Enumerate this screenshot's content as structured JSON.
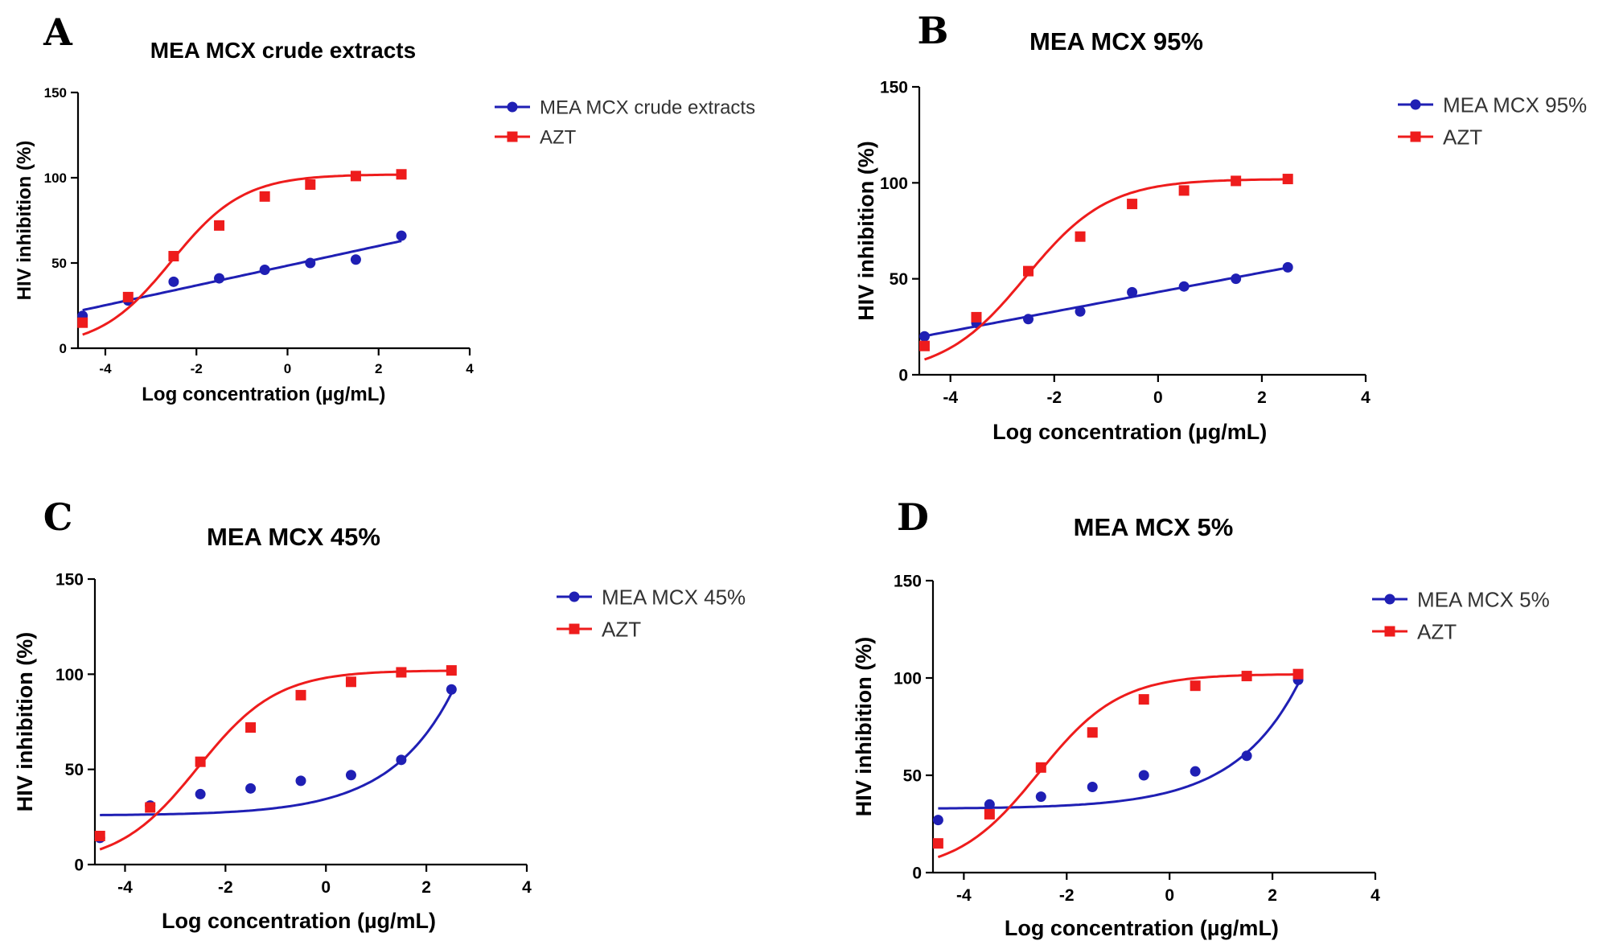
{
  "colors": {
    "blue": "#1f1fb4",
    "red": "#ee1c1c"
  },
  "chart_data": [
    {
      "panel": "A",
      "type": "scatter",
      "title": "MEA MCX crude extracts",
      "xlabel": "Log concentration (µg/mL)",
      "ylabel": "HIV inhibition (%)",
      "xlim": [
        -4.6,
        4
      ],
      "ylim": [
        0,
        150
      ],
      "xticks": [
        -4,
        -2,
        0,
        2,
        4
      ],
      "yticks": [
        0,
        50,
        100,
        150
      ],
      "series": [
        {
          "name": "MEA MCX crude extracts",
          "color": "#1f1fb4",
          "marker": "circle",
          "fit": "linear",
          "x": [
            -4.5,
            -3.5,
            -2.5,
            -1.5,
            -0.5,
            0.5,
            1.5,
            2.5
          ],
          "y": [
            19,
            28,
            39,
            41,
            46,
            50,
            52,
            66
          ]
        },
        {
          "name": "AZT",
          "color": "#ee1c1c",
          "marker": "square",
          "fit": "sigmoid",
          "x": [
            -4.5,
            -3.5,
            -2.5,
            -1.5,
            -0.5,
            0.5,
            1.5,
            2.5
          ],
          "y": [
            15,
            30,
            54,
            72,
            89,
            96,
            101,
            102
          ]
        }
      ]
    },
    {
      "panel": "B",
      "type": "scatter",
      "title": "MEA MCX 95%",
      "xlabel": "Log concentration (µg/mL)",
      "ylabel": "HIV inhibition (%)",
      "xlim": [
        -4.6,
        4
      ],
      "ylim": [
        0,
        150
      ],
      "xticks": [
        -4,
        -2,
        0,
        2,
        4
      ],
      "yticks": [
        0,
        50,
        100,
        150
      ],
      "series": [
        {
          "name": "MEA MCX 95%",
          "color": "#1f1fb4",
          "marker": "circle",
          "fit": "linear",
          "x": [
            -4.5,
            -3.5,
            -2.5,
            -1.5,
            -0.5,
            0.5,
            1.5,
            2.5
          ],
          "y": [
            20,
            27,
            29,
            33,
            43,
            46,
            50,
            56
          ]
        },
        {
          "name": "AZT",
          "color": "#ee1c1c",
          "marker": "square",
          "fit": "sigmoid",
          "x": [
            -4.5,
            -3.5,
            -2.5,
            -1.5,
            -0.5,
            0.5,
            1.5,
            2.5
          ],
          "y": [
            15,
            30,
            54,
            72,
            89,
            96,
            101,
            102
          ]
        }
      ]
    },
    {
      "panel": "C",
      "type": "scatter",
      "title": "MEA MCX  45%",
      "xlabel": "Log concentration (µg/mL)",
      "ylabel": "HIV inhibition (%)",
      "xlim": [
        -4.6,
        4
      ],
      "ylim": [
        0,
        150
      ],
      "xticks": [
        -4,
        -2,
        0,
        2,
        4
      ],
      "yticks": [
        0,
        50,
        100,
        150
      ],
      "series": [
        {
          "name": "MEA MCX 45%",
          "color": "#1f1fb4",
          "marker": "circle",
          "fit": "exponential",
          "x": [
            -4.5,
            -3.5,
            -2.5,
            -1.5,
            -0.5,
            0.5,
            1.5,
            2.5
          ],
          "y": [
            14,
            31,
            37,
            40,
            44,
            47,
            55,
            92
          ]
        },
        {
          "name": "AZT",
          "color": "#ee1c1c",
          "marker": "square",
          "fit": "sigmoid",
          "x": [
            -4.5,
            -3.5,
            -2.5,
            -1.5,
            -0.5,
            0.5,
            1.5,
            2.5
          ],
          "y": [
            15,
            30,
            54,
            72,
            89,
            96,
            101,
            102
          ]
        }
      ]
    },
    {
      "panel": "D",
      "type": "scatter",
      "title": "MEA MCX 5%",
      "xlabel": "Log concentration (µg/mL)",
      "ylabel": "HIV inhibition (%)",
      "xlim": [
        -4.6,
        4
      ],
      "ylim": [
        0,
        150
      ],
      "xticks": [
        -4,
        -2,
        0,
        2,
        4
      ],
      "yticks": [
        0,
        50,
        100,
        150
      ],
      "series": [
        {
          "name": "MEA MCX 5%",
          "color": "#1f1fb4",
          "marker": "circle",
          "fit": "exponential",
          "x": [
            -4.5,
            -3.5,
            -2.5,
            -1.5,
            -0.5,
            0.5,
            1.5,
            2.5
          ],
          "y": [
            27,
            35,
            39,
            44,
            50,
            52,
            60,
            99
          ]
        },
        {
          "name": "AZT",
          "color": "#ee1c1c",
          "marker": "square",
          "fit": "sigmoid",
          "x": [
            -4.5,
            -3.5,
            -2.5,
            -1.5,
            -0.5,
            0.5,
            1.5,
            2.5
          ],
          "y": [
            15,
            30,
            54,
            72,
            89,
            96,
            101,
            102
          ]
        }
      ]
    }
  ]
}
